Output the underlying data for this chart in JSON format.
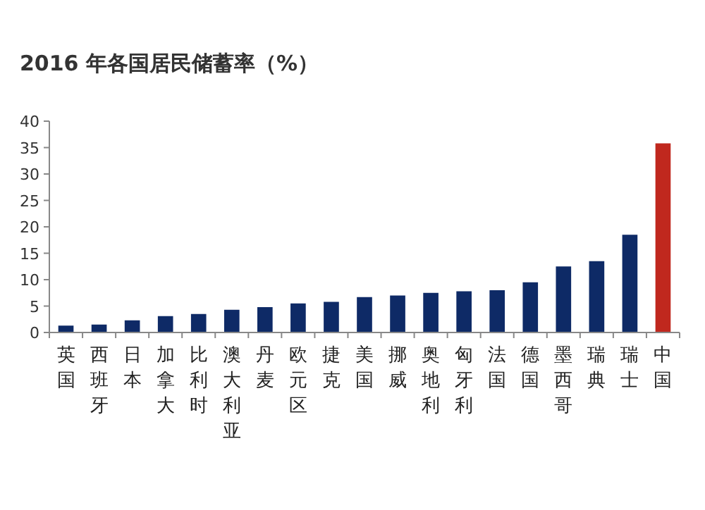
{
  "chart_data": {
    "type": "bar",
    "title": "2016 年各国居民储蓄率（%）",
    "categories": [
      "英国",
      "西班牙",
      "日本",
      "加拿大",
      "比利时",
      "澳大利亚",
      "丹麦",
      "欧元区",
      "捷克",
      "美国",
      "挪威",
      "奥地利",
      "匈牙利",
      "法国",
      "德国",
      "墨西哥",
      "瑞典",
      "瑞士",
      "中国"
    ],
    "values": [
      1.3,
      1.5,
      2.3,
      3.1,
      3.5,
      4.3,
      4.8,
      5.5,
      5.8,
      6.7,
      7.0,
      7.5,
      7.8,
      8.0,
      9.5,
      12.5,
      13.5,
      18.5,
      35.8
    ],
    "colors": [
      "#0e2a66",
      "#0e2a66",
      "#0e2a66",
      "#0e2a66",
      "#0e2a66",
      "#0e2a66",
      "#0e2a66",
      "#0e2a66",
      "#0e2a66",
      "#0e2a66",
      "#0e2a66",
      "#0e2a66",
      "#0e2a66",
      "#0e2a66",
      "#0e2a66",
      "#0e2a66",
      "#0e2a66",
      "#0e2a66",
      "#c0281e"
    ],
    "ylim": [
      0,
      40
    ],
    "yticks": [
      0,
      5,
      10,
      15,
      20,
      25,
      30,
      35,
      40
    ],
    "grid": false
  }
}
